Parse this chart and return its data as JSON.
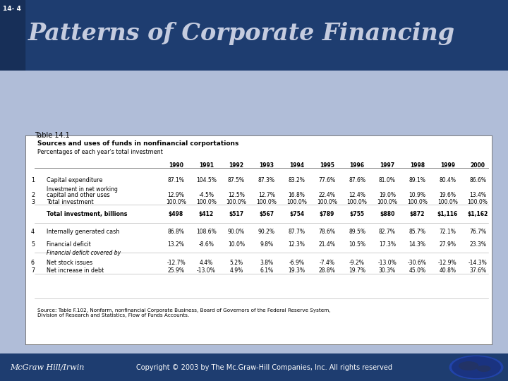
{
  "slide_number": "14- 4",
  "title": "Patterns of Corporate Financing",
  "header_bg": "#1e3d70",
  "header_left_stripe": "#172f58",
  "body_bg": "#b0bdd8",
  "footer_bg": "#1e3d70",
  "title_color": "#c5ccdf",
  "footer_left": "McGraw Hill/Irwin",
  "footer_right": "Copyright © 2003 by The Mc.Graw-Hill Companies, Inc. All rights reserved",
  "table_title": "Table 14.1",
  "table_header1": "Sources and uses of funds in nonfinancial corportations",
  "table_header2": "Percentages of each year's total investment",
  "years": [
    "1990",
    "1991",
    "1992",
    "1993",
    "1994",
    "1995",
    "1996",
    "1997",
    "1998",
    "1999",
    "2000"
  ],
  "rows": [
    {
      "num": "1",
      "label": "Capital expenditure",
      "label2": "Investment in net working",
      "values": [
        "87.1%",
        "104.5%",
        "87.5%",
        "87.3%",
        "83.2%",
        "77.6%",
        "87.6%",
        "81.0%",
        "89.1%",
        "80.4%",
        "86.6%"
      ],
      "bold": false,
      "italic": false
    },
    {
      "num": "2",
      "label": "capital and other uses",
      "label2": "",
      "values": [
        "12.9%",
        "-4.5%",
        "12.5%",
        "12.7%",
        "16.8%",
        "22.4%",
        "12.4%",
        "19.0%",
        "10.9%",
        "19.6%",
        "13.4%"
      ],
      "bold": false,
      "italic": false
    },
    {
      "num": "3",
      "label": "Total investment",
      "label2": "",
      "values": [
        "100.0%",
        "100.0%",
        "100.0%",
        "100.0%",
        "100.0%",
        "100.0%",
        "100.0%",
        "100.0%",
        "100.0%",
        "100.0%",
        "100.0%"
      ],
      "bold": false,
      "italic": false
    },
    {
      "num": "",
      "label": "Total investment, billions",
      "label2": "",
      "values": [
        "$498",
        "$412",
        "$517",
        "$567",
        "$754",
        "$789",
        "$755",
        "$880",
        "$872",
        "$1,116",
        "$1,162"
      ],
      "bold": true,
      "italic": false
    },
    {
      "num": "4",
      "label": "Internally generated cash",
      "label2": "",
      "values": [
        "86.8%",
        "108.6%",
        "90.0%",
        "90.2%",
        "87.7%",
        "78.6%",
        "89.5%",
        "82.7%",
        "85.7%",
        "72.1%",
        "76.7%"
      ],
      "bold": false,
      "italic": false
    },
    {
      "num": "5",
      "label": "Financial deficit",
      "label2": "Financial deficit covered by",
      "values": [
        "13.2%",
        "-8.6%",
        "10.0%",
        "9.8%",
        "12.3%",
        "21.4%",
        "10.5%",
        "17.3%",
        "14.3%",
        "27.9%",
        "23.3%"
      ],
      "bold": false,
      "italic": false
    },
    {
      "num": "6",
      "label": "Net stock issues",
      "label2": "",
      "values": [
        "-12.7%",
        "4.4%",
        "5.2%",
        "3.8%",
        "-6.9%",
        "-7.4%",
        "-9.2%",
        "-13.0%",
        "-30.6%",
        "-12.9%",
        "-14.3%"
      ],
      "bold": false,
      "italic": false
    },
    {
      "num": "7",
      "label": "Net increase in debt",
      "label2": "",
      "values": [
        "25.9%",
        "-13.0%",
        "4.9%",
        "6.1%",
        "19.3%",
        "28.8%",
        "19.7%",
        "30.3%",
        "45.0%",
        "40.8%",
        "37.6%"
      ],
      "bold": false,
      "italic": false
    }
  ],
  "source_text": "Source: Table F.102, Nonfarm, nonfinancial Corporate Business, Board of Governors of the Federal Reserve System,\nDivision of Research and Statistics, Flow of Funds Accounts."
}
